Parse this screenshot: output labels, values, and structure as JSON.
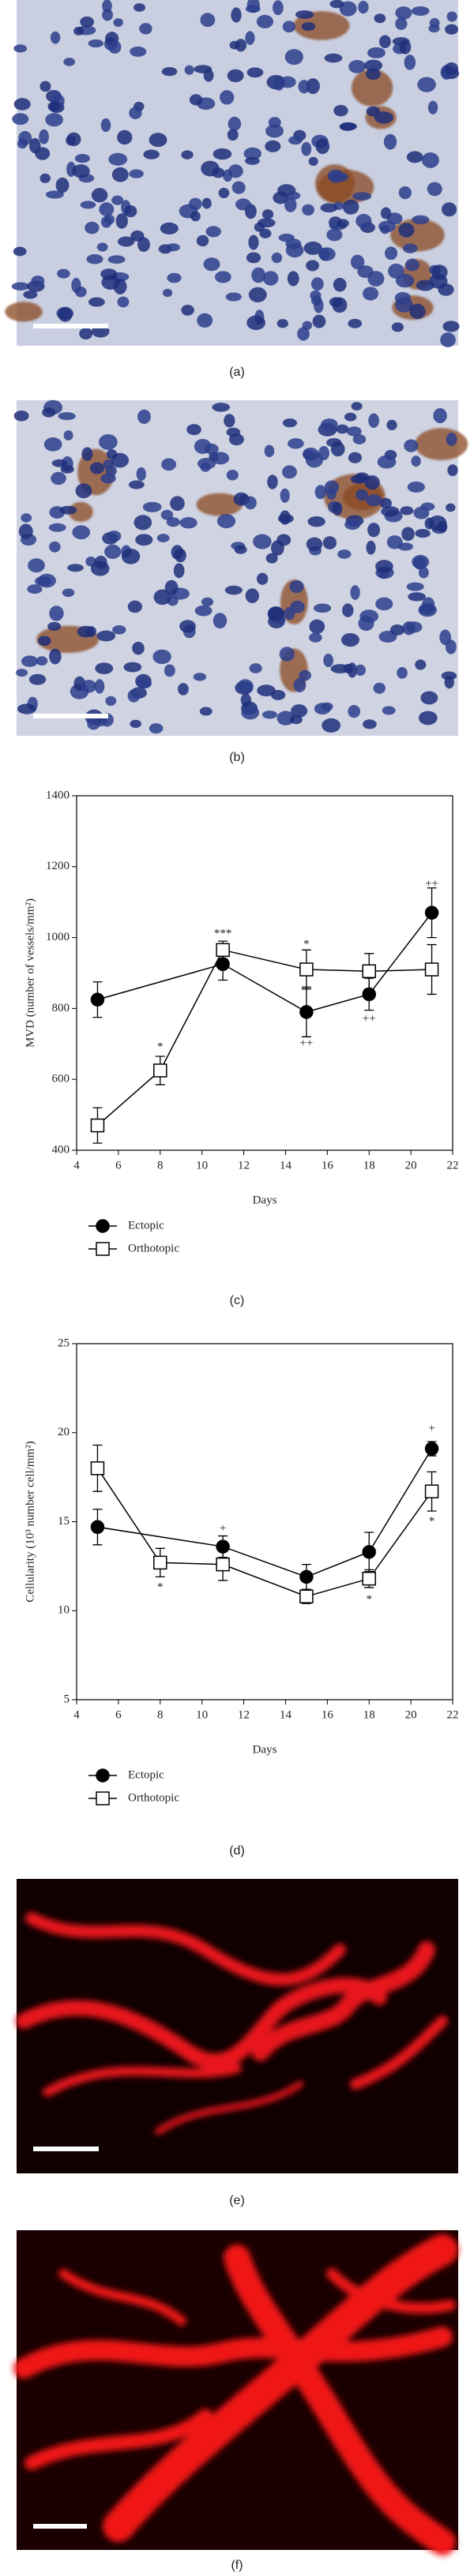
{
  "panel_labels": [
    "(a)",
    "(b)",
    "(c)",
    "(d)",
    "(e)",
    "(f)"
  ],
  "chart_data": [
    {
      "type": "line",
      "x_label": "Days",
      "y_label": "MVD (number of vessels/mm²)",
      "xlim": [
        4,
        22
      ],
      "xticks": [
        4,
        6,
        8,
        10,
        12,
        14,
        16,
        18,
        20,
        22
      ],
      "ylim": [
        400,
        1400
      ],
      "yticks": [
        400,
        600,
        800,
        1000,
        1200,
        1400
      ],
      "series": [
        {
          "name": "Ectopic",
          "color": "#000000",
          "marker": "circle",
          "fill": "#000000",
          "x": [
            5,
            11,
            15,
            18,
            21
          ],
          "values": [
            825,
            925,
            790,
            840,
            1070
          ],
          "errors": [
            50,
            45,
            70,
            45,
            70
          ]
        },
        {
          "name": "Orthotopic",
          "color": "#000000",
          "marker": "square",
          "fill": "#ffffff",
          "x": [
            5,
            8,
            11,
            15,
            18,
            21
          ],
          "values": [
            470,
            625,
            965,
            910,
            905,
            910
          ],
          "errors": [
            50,
            40,
            25,
            55,
            50,
            70
          ]
        }
      ],
      "annotations": [
        {
          "text": "*",
          "x": 8,
          "y": 690
        },
        {
          "text": "***",
          "x": 11,
          "y": 1010
        },
        {
          "text": "*",
          "x": 15,
          "y": 980
        },
        {
          "text": "++",
          "x": 15,
          "y": 700
        },
        {
          "text": "++",
          "x": 18,
          "y": 770
        },
        {
          "text": "++",
          "x": 21,
          "y": 1150
        }
      ]
    },
    {
      "type": "line",
      "x_label": "Days",
      "y_label": "Cellularity (10³ number cell/mm²)",
      "xlim": [
        4,
        22
      ],
      "xticks": [
        4,
        6,
        8,
        10,
        12,
        14,
        16,
        18,
        20,
        22
      ],
      "ylim": [
        5,
        25
      ],
      "yticks": [
        5,
        10,
        15,
        20,
        25
      ],
      "series": [
        {
          "name": "Ectopic",
          "color": "#000000",
          "marker": "circle",
          "fill": "#000000",
          "x": [
            5,
            11,
            15,
            18,
            21
          ],
          "values": [
            14.7,
            13.6,
            11.9,
            13.3,
            19.1
          ],
          "errors": [
            1,
            0.6,
            0.7,
            1.1,
            0.4
          ]
        },
        {
          "name": "Orthotopic",
          "color": "#000000",
          "marker": "square",
          "fill": "#ffffff",
          "x": [
            5,
            8,
            11,
            15,
            18,
            21
          ],
          "values": [
            18,
            12.7,
            12.6,
            10.8,
            11.8,
            16.7
          ],
          "errors": [
            1.3,
            0.8,
            0.9,
            0.4,
            0.5,
            1.1
          ]
        }
      ],
      "annotations": [
        {
          "text": "*",
          "x": 8,
          "y": 11.3
        },
        {
          "text": "+",
          "x": 11,
          "y": 14.6
        },
        {
          "text": "*",
          "x": 18,
          "y": 10.6
        },
        {
          "text": "+",
          "x": 21,
          "y": 20.2
        },
        {
          "text": "*",
          "x": 21,
          "y": 15
        }
      ]
    }
  ]
}
